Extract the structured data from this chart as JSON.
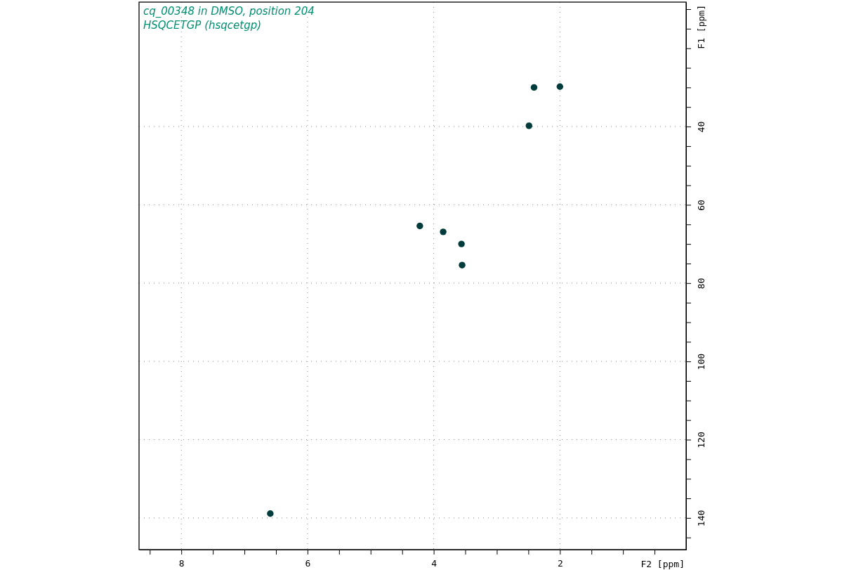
{
  "chart_data": {
    "type": "scatter",
    "title": "cq_00348 in DMSO, position 204",
    "subtitle": "HSQCETGP (hsqcetgp)",
    "xlabel": "F2 [ppm]",
    "ylabel": "F1 [ppm]",
    "x": [
      2.41,
      2.0,
      2.49,
      4.22,
      3.85,
      3.56,
      3.55,
      6.59
    ],
    "values": [
      30.0,
      29.8,
      39.8,
      65.4,
      66.9,
      70.0,
      75.4,
      138.9
    ],
    "color": "#003c3c",
    "marker": "circle",
    "grid": true,
    "xlim": [
      8.67,
      0
    ],
    "xticks": [
      {
        "value": 8.5,
        "label": null
      },
      8,
      {
        "value": 7.5,
        "label": null
      },
      {
        "value": 7,
        "label": null
      },
      {
        "value": 6.5,
        "label": null
      },
      6,
      {
        "value": 5.5,
        "label": null
      },
      {
        "value": 5,
        "label": null
      },
      {
        "value": 4.5,
        "label": null
      },
      4,
      {
        "value": 3.5,
        "label": null
      },
      {
        "value": 3,
        "label": null
      },
      {
        "value": 2.5,
        "label": null
      },
      2,
      {
        "value": 1.5,
        "label": null
      },
      {
        "value": 1,
        "label": null
      },
      {
        "value": 0.5,
        "label": null
      }
    ],
    "ylim": [
      148.1,
      8.2
    ],
    "yticks": [
      {
        "value": 10,
        "label": null
      },
      {
        "value": 15,
        "label": null
      },
      {
        "value": 20,
        "label": null
      },
      {
        "value": 25,
        "label": null
      },
      {
        "value": 30,
        "label": null
      },
      {
        "value": 35,
        "label": null
      },
      40,
      {
        "value": 45,
        "label": null
      },
      {
        "value": 50,
        "label": null
      },
      {
        "value": 55,
        "label": null
      },
      60,
      {
        "value": 65,
        "label": null
      },
      {
        "value": 70,
        "label": null
      },
      {
        "value": 75,
        "label": null
      },
      80,
      {
        "value": 85,
        "label": null
      },
      {
        "value": 90,
        "label": null
      },
      {
        "value": 95,
        "label": null
      },
      100,
      {
        "value": 105,
        "label": null
      },
      {
        "value": 110,
        "label": null
      },
      {
        "value": 115,
        "label": null
      },
      120,
      {
        "value": 125,
        "label": null
      },
      {
        "value": 130,
        "label": null
      },
      {
        "value": 135,
        "label": null
      },
      140,
      {
        "value": 145,
        "label": null
      }
    ]
  }
}
